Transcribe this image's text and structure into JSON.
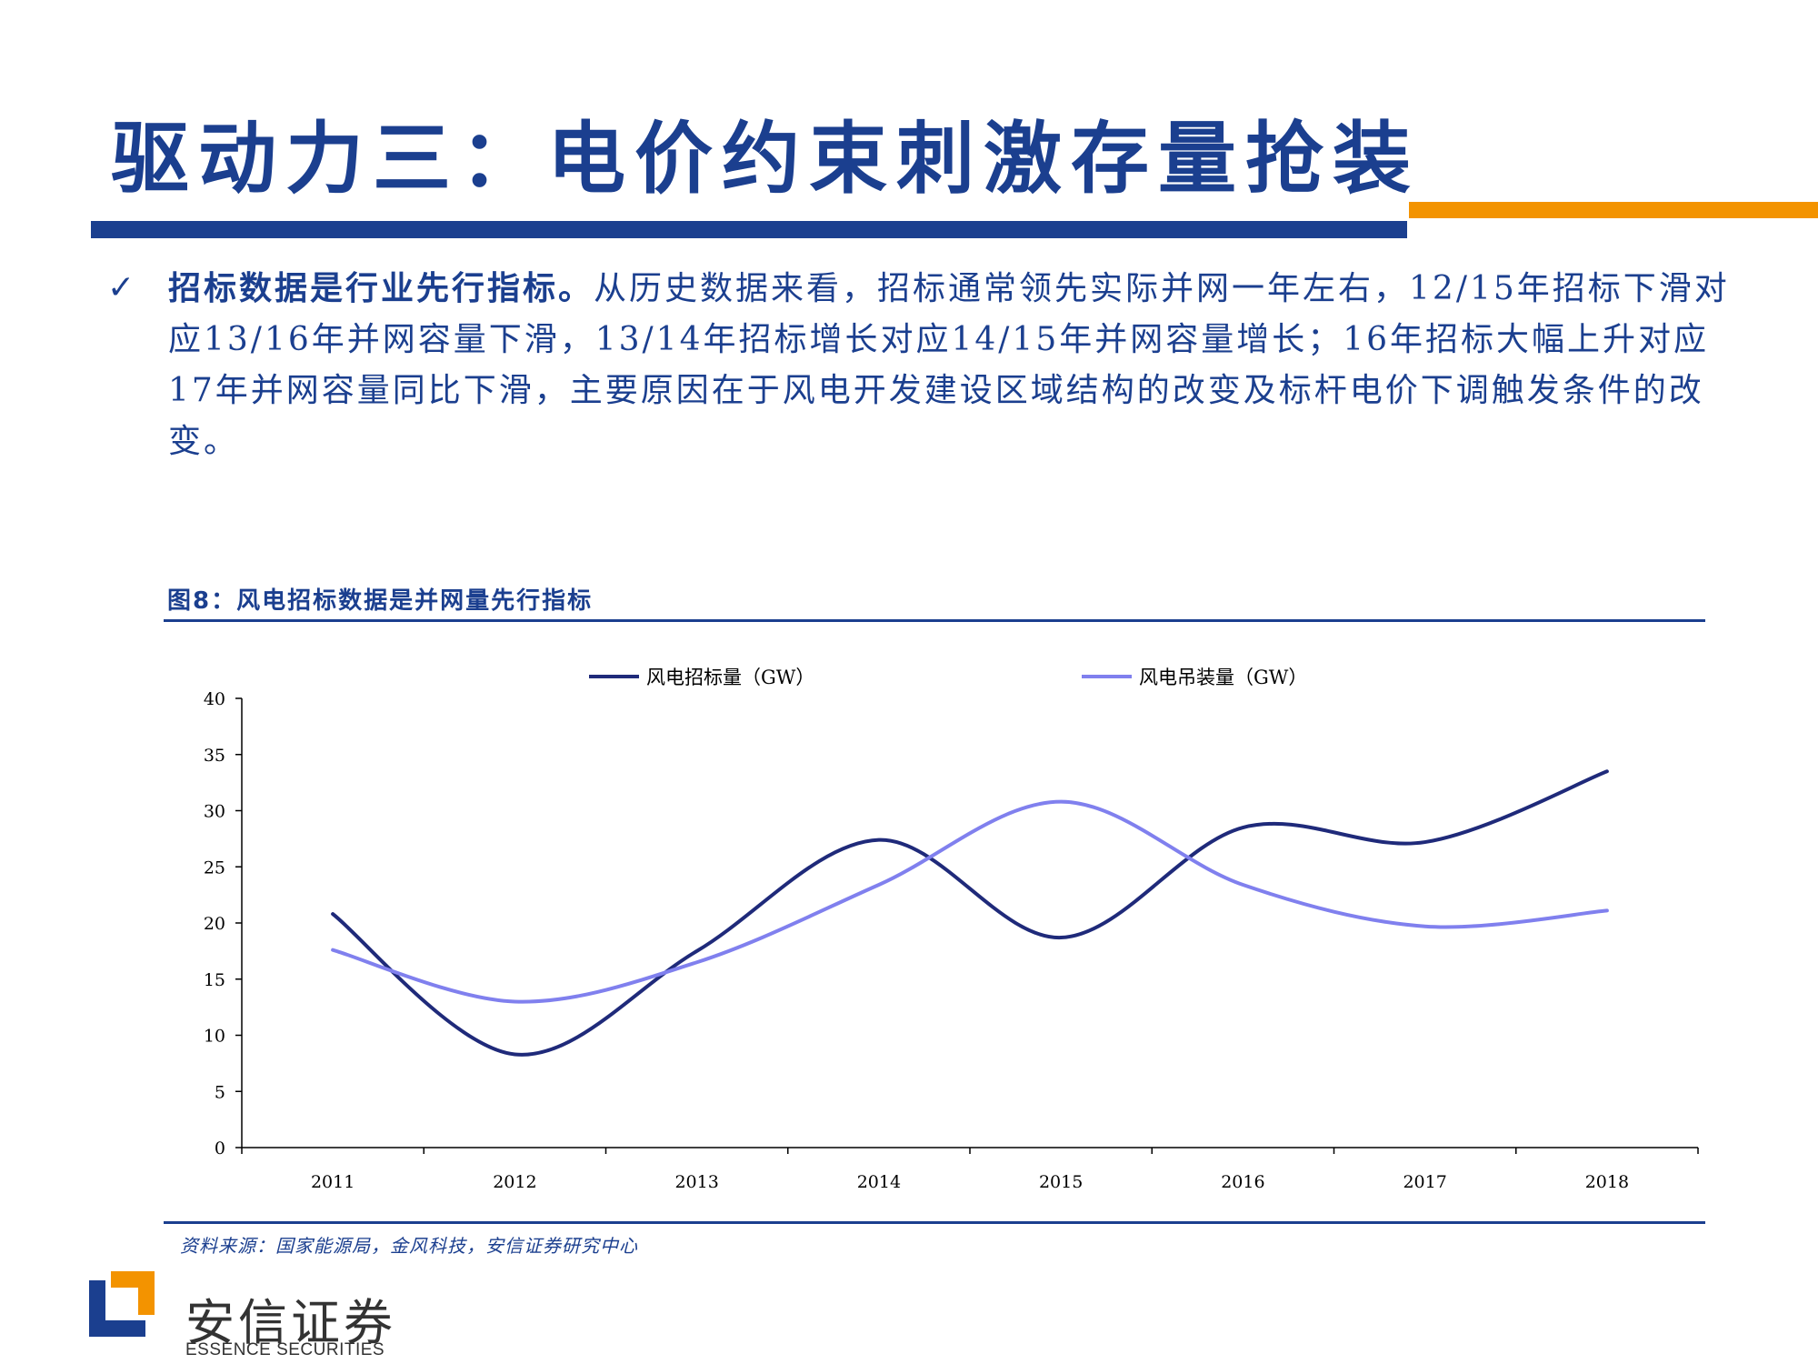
{
  "slide": {
    "title": "驱动力三：电价约束刺激存量抢装",
    "bullet_lead": "招标数据是行业先行指标。",
    "bullet_text": "从历史数据来看，招标通常领先实际并网一年左右，12/15年招标下滑对应13/16年并网容量下滑，13/14年招标增长对应14/15年并网容量增长；16年招标大幅上升对应17年并网容量同比下滑，主要原因在于风电开发建设区域结构的改变及标杆电价下调触发条件的改变。",
    "check_icon": "✓",
    "figure_title": "图8：风电招标数据是并网量先行指标",
    "source": "资料来源：国家能源局，金风科技，安信证券研究中心"
  },
  "logo": {
    "cn": "安信证券",
    "en": "ESSENCE SECURITIES"
  },
  "colors": {
    "brand_blue": "#1b3f8f",
    "accent_orange": "#f39300",
    "series_tender": "#1f2a7a",
    "series_install": "#8080ee"
  },
  "chart_data": {
    "type": "line",
    "categories": [
      "2011",
      "2012",
      "2013",
      "2014",
      "2015",
      "2016",
      "2017",
      "2018"
    ],
    "series": [
      {
        "name": "风电招标量（GW）",
        "values": [
          20.8,
          8.3,
          17.5,
          27.4,
          18.7,
          28.5,
          27.2,
          33.5
        ],
        "color": "#1f2a7a"
      },
      {
        "name": "风电吊装量（GW）",
        "values": [
          17.6,
          13.0,
          16.5,
          23.4,
          30.8,
          23.4,
          19.7,
          21.1
        ],
        "color": "#8080ee"
      }
    ],
    "ylim": [
      0,
      40
    ],
    "yticks": [
      0,
      5,
      10,
      15,
      20,
      25,
      30,
      35,
      40
    ],
    "smooth": true,
    "legend_position": "top"
  }
}
